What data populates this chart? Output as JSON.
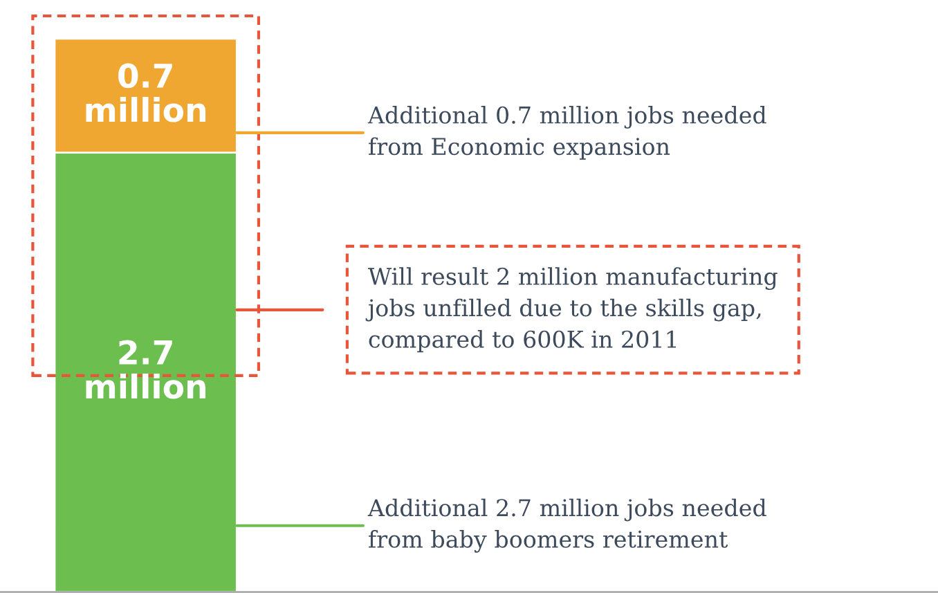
{
  "chart_data": {
    "type": "bar",
    "stacked": true,
    "categories": [
      null
    ],
    "series": [
      {
        "color": "#6cbf4f",
        "values": [
          2.7
        ],
        "value_labels": [
          "2.7 million"
        ]
      },
      {
        "color": "#f0a732",
        "values": [
          0.7
        ],
        "value_labels": [
          "0.7 million"
        ]
      }
    ],
    "annotations": [
      "Additional 0.7 million jobs needed\nfrom Economic expansion",
      "Will result 2 million manufacturing\njobs unfilled due to the skills gap,\ncompared to 600K in 2011",
      "Additional 2.7 million jobs needed\nfrom baby boomers retirement"
    ]
  }
}
